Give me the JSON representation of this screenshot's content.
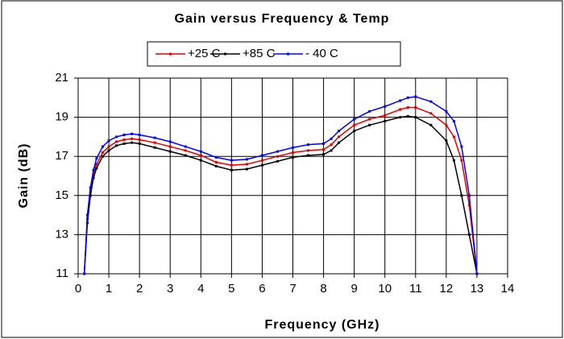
{
  "chart_data": {
    "type": "line",
    "title": "Gain versus Frequency & Temp",
    "x_label": "Frequency (GHz)",
    "y_label": "Gain (dB)",
    "x": [
      0.2,
      0.3,
      0.4,
      0.5,
      0.6,
      0.8,
      1,
      1.25,
      1.5,
      1.75,
      2,
      2.5,
      3,
      3.5,
      4,
      4.5,
      5,
      5.5,
      6,
      6.5,
      7,
      7.5,
      8,
      8.25,
      8.5,
      9,
      9.5,
      10,
      10.5,
      10.75,
      11,
      11.5,
      12,
      12.25,
      12.5,
      12.75,
      13
    ],
    "series": [
      {
        "name": "+25 C",
        "color": "#e00000",
        "values": [
          11,
          13.8,
          15.2,
          16.1,
          16.6,
          17.2,
          17.5,
          17.75,
          17.85,
          17.9,
          17.85,
          17.7,
          17.5,
          17.3,
          17.05,
          16.7,
          16.55,
          16.6,
          16.8,
          17.0,
          17.2,
          17.3,
          17.35,
          17.6,
          18.0,
          18.6,
          18.9,
          19.1,
          19.4,
          19.5,
          19.5,
          19.2,
          18.6,
          18.0,
          16.8,
          14.5,
          11
        ]
      },
      {
        "name": "+85 C",
        "color": "#000000",
        "values": [
          11,
          13.6,
          15.0,
          15.9,
          16.4,
          17.0,
          17.3,
          17.55,
          17.65,
          17.7,
          17.65,
          17.45,
          17.25,
          17.05,
          16.8,
          16.5,
          16.3,
          16.35,
          16.55,
          16.75,
          16.95,
          17.05,
          17.1,
          17.3,
          17.7,
          18.3,
          18.6,
          18.8,
          19.0,
          19.05,
          19.0,
          18.6,
          17.8,
          16.8,
          15.0,
          13.0,
          11
        ]
      },
      {
        "name": "- 40 C",
        "color": "#0000ff",
        "values": [
          11,
          14.0,
          15.4,
          16.3,
          16.9,
          17.5,
          17.8,
          18.0,
          18.1,
          18.15,
          18.1,
          17.95,
          17.75,
          17.5,
          17.25,
          16.95,
          16.8,
          16.85,
          17.05,
          17.25,
          17.45,
          17.6,
          17.65,
          17.9,
          18.3,
          18.9,
          19.3,
          19.55,
          19.85,
          20.0,
          20.05,
          19.8,
          19.3,
          18.8,
          17.5,
          15.0,
          11
        ]
      }
    ],
    "xlim": [
      0,
      14
    ],
    "xticks": [
      0,
      1,
      2,
      3,
      4,
      5,
      6,
      7,
      8,
      9,
      10,
      11,
      12,
      13,
      14
    ],
    "ylim": [
      11,
      21
    ],
    "yticks": [
      11,
      13,
      15,
      17,
      19,
      21
    ],
    "grid": true,
    "legend": "top"
  }
}
